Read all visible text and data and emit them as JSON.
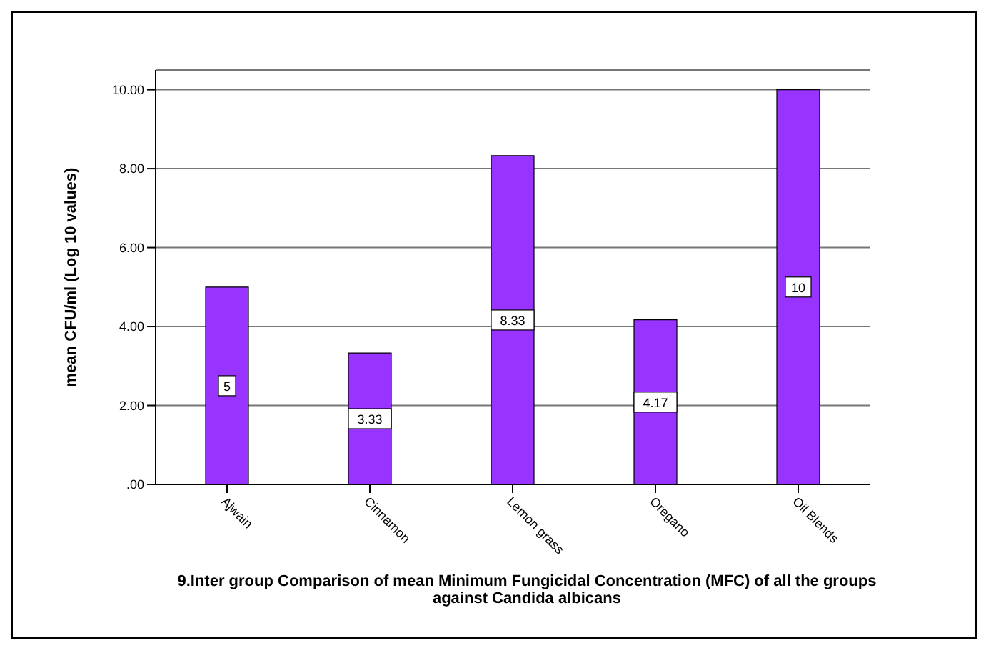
{
  "chart_data": {
    "type": "bar",
    "title": "9.Inter group Comparison of mean Minimum Fungicidal Concentration (MFC) of all the groups against Candida albicans",
    "ylabel": "mean CFU/ml (Log 10 values)",
    "categories": [
      "Ajwain",
      "Cinnamon",
      "Lemon grass",
      "Oregano",
      "Oil Blends"
    ],
    "values": [
      5,
      3.33,
      8.33,
      4.17,
      10
    ],
    "color": "#9933ff",
    "ylim": [
      0,
      10.5
    ],
    "yticks": [
      {
        "value": 0,
        "label": ".00"
      },
      {
        "value": 2,
        "label": "2.00"
      },
      {
        "value": 4,
        "label": "4.00"
      },
      {
        "value": 6,
        "label": "6.00"
      },
      {
        "value": 8,
        "label": "8.00"
      },
      {
        "value": 10,
        "label": "10.00"
      }
    ],
    "grid": "y",
    "data_labels": true
  }
}
